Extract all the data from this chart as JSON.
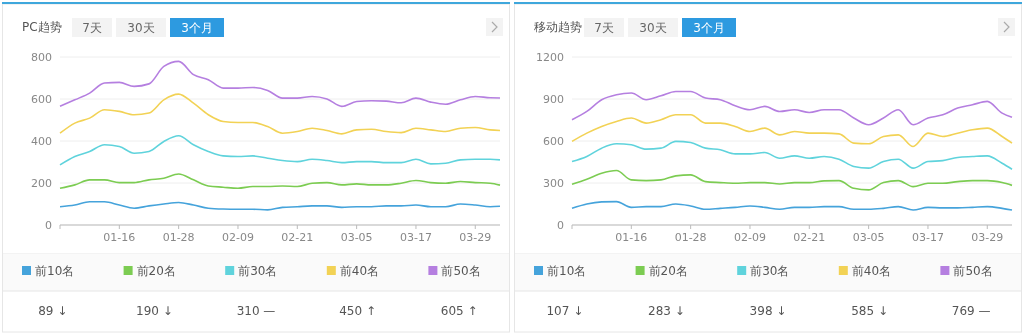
{
  "chart_data": [
    {
      "type": "line",
      "title": "PC趋势",
      "grid": "y",
      "legend": "bottom",
      "ylim": [
        0,
        800
      ],
      "yticks": [
        0,
        200,
        400,
        600,
        800
      ],
      "xlim": [
        "--01-04",
        "--04-03"
      ],
      "xticks": [
        {
          "value": "--01-16",
          "label": "01-16"
        },
        {
          "value": "--01-28",
          "label": "01-28"
        },
        {
          "value": "--02-09",
          "label": "02-09"
        },
        {
          "value": "--02-21",
          "label": "02-21"
        },
        {
          "value": "--03-05",
          "label": "03-05"
        },
        {
          "value": "--03-17",
          "label": "03-17"
        },
        {
          "value": "--03-29",
          "label": "03-29"
        }
      ],
      "x": [
        "--01-04",
        "--01-07",
        "--01-10",
        "--01-13",
        "--01-16",
        "--01-19",
        "--01-22",
        "--01-25",
        "--01-28",
        "--01-31",
        "--02-03",
        "--02-06",
        "--02-09",
        "--02-12",
        "--02-15",
        "--02-18",
        "--02-21",
        "--02-24",
        "--02-27",
        "--03-02",
        "--03-05",
        "--03-08",
        "--03-11",
        "--03-14",
        "--03-17",
        "--03-20",
        "--03-23",
        "--03-26",
        "--03-29",
        "--04-01",
        "--04-03"
      ],
      "series": [
        {
          "name": "前10名",
          "color": "#45a3db",
          "values": [
            87,
            95,
            111,
            111,
            95,
            80,
            91,
            100,
            107,
            95,
            80,
            76,
            75,
            75,
            72,
            84,
            87,
            91,
            91,
            84,
            87,
            87,
            91,
            91,
            95,
            87,
            87,
            100,
            95,
            87,
            89
          ]
        },
        {
          "name": "前20名",
          "color": "#7ccc52",
          "values": [
            175,
            191,
            215,
            215,
            202,
            202,
            215,
            223,
            243,
            215,
            186,
            180,
            175,
            183,
            183,
            186,
            183,
            199,
            202,
            191,
            196,
            191,
            191,
            199,
            212,
            202,
            199,
            207,
            202,
            199,
            190
          ]
        },
        {
          "name": "前30名",
          "color": "#5fd3dc",
          "values": [
            286,
            326,
            350,
            382,
            374,
            342,
            350,
            398,
            425,
            382,
            350,
            329,
            326,
            329,
            318,
            307,
            302,
            313,
            307,
            297,
            302,
            302,
            297,
            297,
            313,
            291,
            294,
            310,
            313,
            313,
            310
          ]
        },
        {
          "name": "前40名",
          "color": "#f2d255",
          "values": [
            437,
            485,
            509,
            549,
            541,
            525,
            533,
            596,
            623,
            580,
            525,
            493,
            488,
            488,
            469,
            437,
            445,
            461,
            450,
            434,
            453,
            456,
            445,
            440,
            461,
            453,
            445,
            461,
            464,
            453,
            450
          ]
        },
        {
          "name": "前50名",
          "color": "#b57fe0",
          "values": [
            565,
            596,
            628,
            676,
            679,
            660,
            672,
            755,
            779,
            716,
            692,
            652,
            652,
            655,
            641,
            604,
            604,
            612,
            600,
            565,
            588,
            592,
            590,
            582,
            604,
            585,
            575,
            596,
            612,
            606,
            605
          ]
        }
      ],
      "annotations": [
        "7天",
        "30天",
        "3个月",
        "89 ↓",
        "190 ↓",
        "310 —",
        "450 ↑",
        "605 ↑"
      ]
    },
    {
      "type": "line",
      "title": "移动趋势",
      "grid": "y",
      "legend": "bottom",
      "ylim": [
        0,
        1200
      ],
      "yticks": [
        0,
        300,
        600,
        900,
        1200
      ],
      "xlim": [
        "--01-04",
        "--04-03"
      ],
      "xticks": [
        {
          "value": "--01-16",
          "label": "01-16"
        },
        {
          "value": "--01-28",
          "label": "01-28"
        },
        {
          "value": "--02-09",
          "label": "02-09"
        },
        {
          "value": "--02-21",
          "label": "02-21"
        },
        {
          "value": "--03-05",
          "label": "03-05"
        },
        {
          "value": "--03-17",
          "label": "03-17"
        },
        {
          "value": "--03-29",
          "label": "03-29"
        }
      ],
      "x": [
        "--01-04",
        "--01-07",
        "--01-10",
        "--01-13",
        "--01-16",
        "--01-19",
        "--01-22",
        "--01-25",
        "--01-28",
        "--01-31",
        "--02-03",
        "--02-06",
        "--02-09",
        "--02-12",
        "--02-15",
        "--02-18",
        "--02-21",
        "--02-24",
        "--02-27",
        "--03-02",
        "--03-05",
        "--03-08",
        "--03-11",
        "--03-14",
        "--03-17",
        "--03-20",
        "--03-23",
        "--03-26",
        "--03-29",
        "--04-01",
        "--04-03"
      ],
      "series": [
        {
          "name": "前10名",
          "color": "#45a3db",
          "values": [
            119,
            150,
            165,
            167,
            126,
            131,
            131,
            150,
            136,
            112,
            119,
            126,
            136,
            126,
            112,
            126,
            126,
            131,
            131,
            112,
            112,
            119,
            131,
            107,
            126,
            122,
            122,
            126,
            131,
            119,
            107
          ]
        },
        {
          "name": "前20名",
          "color": "#7ccc52",
          "values": [
            291,
            327,
            370,
            389,
            322,
            317,
            322,
            351,
            358,
            310,
            303,
            298,
            303,
            303,
            293,
            303,
            303,
            315,
            317,
            262,
            251,
            303,
            317,
            274,
            298,
            298,
            310,
            317,
            317,
            303,
            283
          ]
        },
        {
          "name": "前30名",
          "color": "#5fd3dc",
          "values": [
            453,
            489,
            549,
            580,
            573,
            542,
            549,
            597,
            589,
            549,
            537,
            508,
            508,
            518,
            477,
            494,
            477,
            489,
            470,
            418,
            406,
            453,
            470,
            406,
            453,
            460,
            482,
            489,
            494,
            441,
            398
          ]
        },
        {
          "name": "前40名",
          "color": "#f2d255",
          "values": [
            597,
            656,
            704,
            740,
            764,
            728,
            752,
            787,
            787,
            728,
            728,
            704,
            668,
            692,
            644,
            668,
            656,
            656,
            651,
            585,
            580,
            632,
            644,
            561,
            656,
            632,
            656,
            680,
            692,
            632,
            585
          ]
        },
        {
          "name": "前50名",
          "color": "#b57fe0",
          "values": [
            752,
            811,
            895,
            931,
            943,
            895,
            923,
            954,
            954,
            907,
            895,
            852,
            823,
            847,
            811,
            823,
            804,
            823,
            823,
            764,
            716,
            764,
            823,
            716,
            764,
            787,
            835,
            859,
            883,
            799,
            769
          ]
        }
      ],
      "annotations": [
        "7天",
        "30天",
        "3个月",
        "107 ↓",
        "283 ↓",
        "398 ↓",
        "585 ↓",
        "769 —"
      ]
    }
  ]
}
